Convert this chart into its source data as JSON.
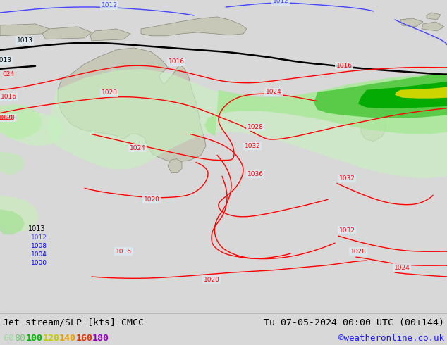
{
  "title_left": "Jet stream/SLP [kts] CMCC",
  "title_right": "Tu 07-05-2024 00:00 UTC (00+144)",
  "credit": "©weatheronline.co.uk",
  "legend_values": [
    60,
    80,
    100,
    120,
    140,
    160,
    180
  ],
  "legend_colors": [
    "#a0d8a0",
    "#70c870",
    "#00b400",
    "#c8c800",
    "#e6a000",
    "#e03000",
    "#9000c0"
  ],
  "bg_color": "#d8d8d8",
  "ocean_color": "#dce8f0",
  "land_color": "#c8c8b8",
  "bottom_bg": "#ffffff",
  "title_fontsize": 9.5,
  "credit_fontsize": 9,
  "legend_fontsize": 9.5,
  "jet_light_green": "#c8f0c0",
  "jet_med_green": "#90d870",
  "jet_dark_green": "#00b400",
  "jet_yellow": "#e0e000",
  "jet_orange": "#e8a000"
}
